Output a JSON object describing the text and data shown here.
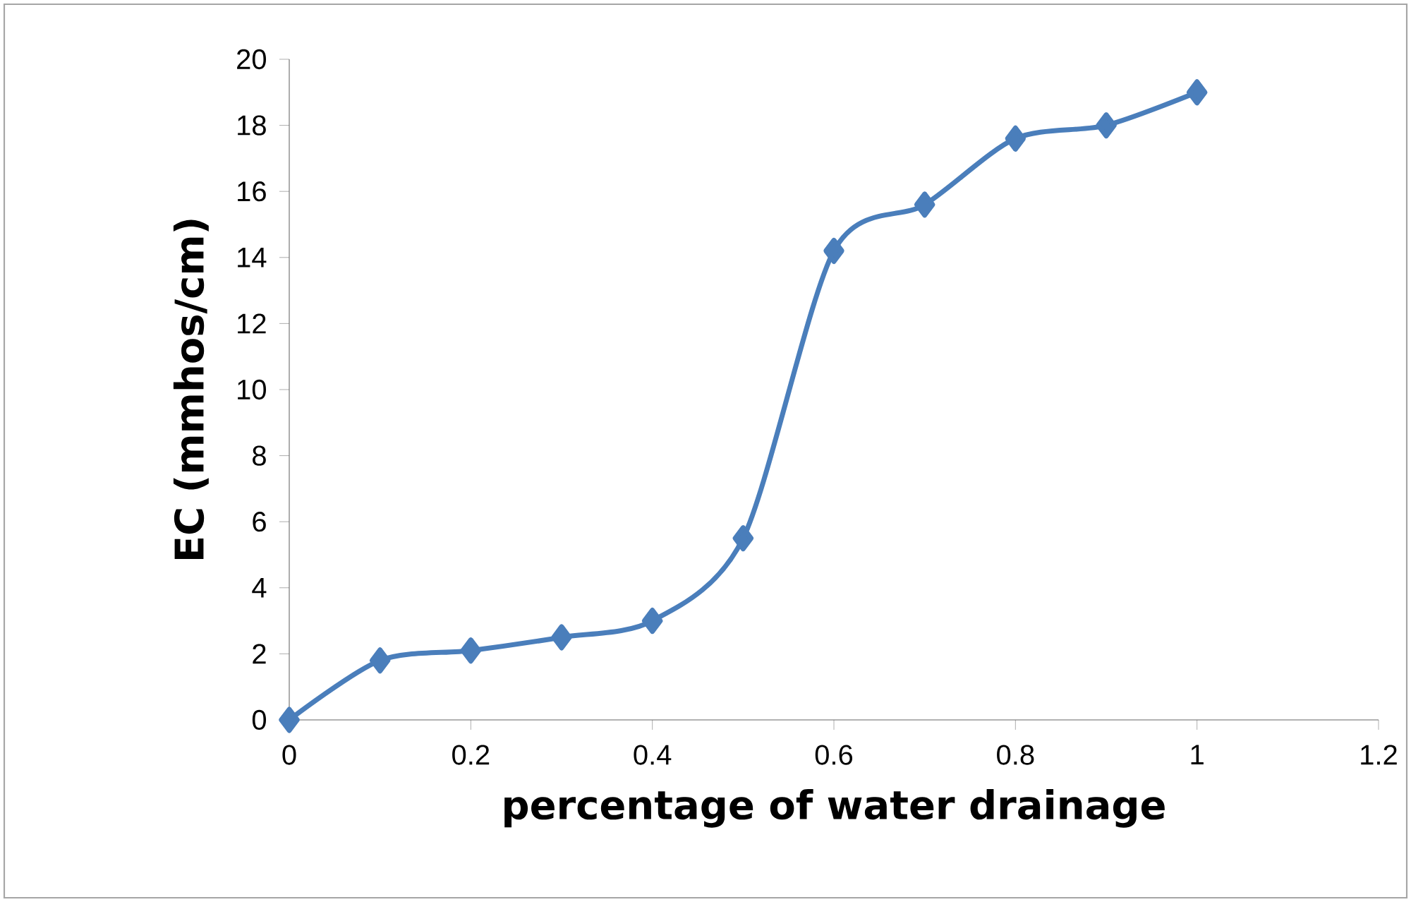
{
  "chart_data": {
    "type": "line",
    "xlabel": "percentage of water drainage",
    "ylabel": "EC (mmhos/cm)",
    "x": [
      0,
      0.1,
      0.2,
      0.3,
      0.4,
      0.5,
      0.6,
      0.7,
      0.8,
      0.9,
      1
    ],
    "series": [
      {
        "color": "#4a7ebb",
        "values": [
          0,
          1.8,
          2.1,
          2.5,
          3.0,
          5.5,
          14.2,
          15.6,
          17.6,
          18.0,
          19.0
        ]
      }
    ],
    "xlim": [
      0,
      1.2
    ],
    "xticks": [
      0,
      0.2,
      0.4,
      0.6,
      0.8,
      1,
      1.2
    ],
    "ylim": [
      0,
      20
    ],
    "yticks": [
      0,
      2,
      4,
      6,
      8,
      10,
      12,
      14,
      16,
      18,
      20
    ],
    "grid": false,
    "marker": "diamond",
    "line_style": "solid"
  }
}
